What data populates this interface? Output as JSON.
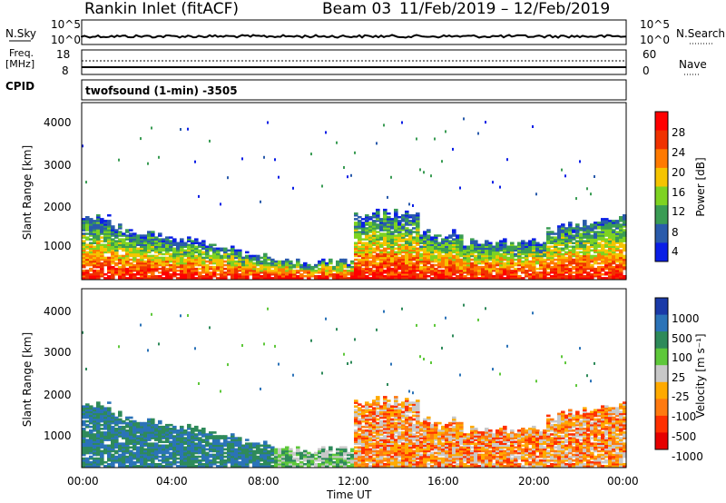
{
  "header": {
    "station": "Rankin Inlet (fitACF)",
    "beam": "Beam 03",
    "dates": "11/Feb/2019 – 12/Feb/2019"
  },
  "panels": {
    "nsky": {
      "label": "N.Sky",
      "left_ticks": [
        "10^5",
        "10^0"
      ],
      "right_ticks": [
        "10^5",
        "10^0"
      ],
      "right_label": "N.Search"
    },
    "freq": {
      "label_line1": "Freq.",
      "label_line2": "[MHz]",
      "left_ticks": [
        "18",
        "8"
      ],
      "right_ticks": [
        "60",
        "0"
      ],
      "right_label": "Nave"
    },
    "cpid": {
      "label": "CPID",
      "mode": "twofsound (1-min) -3505"
    }
  },
  "chart_data": [
    {
      "type": "heatmap",
      "name": "power",
      "ylabel": "Slant Range [km]",
      "xlabel": "",
      "y_ticks": [
        "4000",
        "3000",
        "2000",
        "1000"
      ],
      "ylim": [
        180,
        4500
      ],
      "colorbar": {
        "label": "Power [dB]",
        "ticks": [
          "28",
          "24",
          "20",
          "16",
          "12",
          "8",
          "4"
        ],
        "colors": [
          "#ff0000",
          "#f03200",
          "#ff7a00",
          "#f5c400",
          "#7ed321",
          "#3a9c54",
          "#2a5bab",
          "#0a1ee6"
        ]
      }
    },
    {
      "type": "heatmap",
      "name": "velocity",
      "ylabel": "Slant Range [km]",
      "xlabel": "Time UT",
      "y_ticks": [
        "4000",
        "3000",
        "2000",
        "1000"
      ],
      "x_ticks": [
        "00:00",
        "04:00",
        "08:00",
        "12:00",
        "16:00",
        "20:00",
        "00:00"
      ],
      "ylim": [
        180,
        4500
      ],
      "colorbar": {
        "label": "Velocity [m s⁻¹]",
        "ticks": [
          "1000",
          "500",
          "100",
          "25",
          "-25",
          "-100",
          "-500",
          "-1000"
        ],
        "colors": [
          "#1a3aa8",
          "#2b73b8",
          "#2e8a5a",
          "#5ec83a",
          "#c8c8c8",
          "#ffaa00",
          "#ff7a10",
          "#ff3000",
          "#e60000"
        ]
      }
    }
  ]
}
